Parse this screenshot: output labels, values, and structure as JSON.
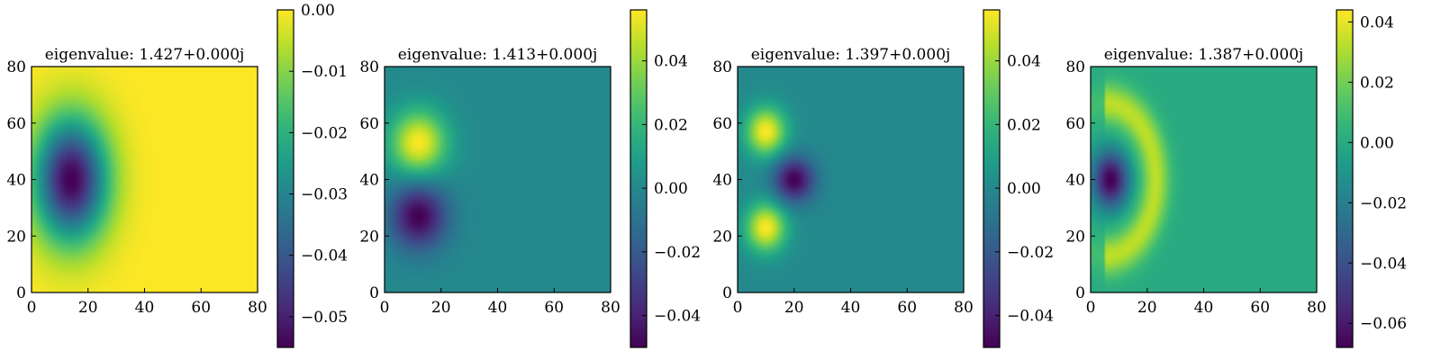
{
  "chart_data": [
    {
      "type": "heatmap",
      "title": "eigenvalue: 1.427+0.000j",
      "xlim": [
        0,
        80
      ],
      "ylim": [
        0,
        80
      ],
      "xticks": [
        "0",
        "20",
        "40",
        "60",
        "80"
      ],
      "yticks": [
        "0",
        "20",
        "40",
        "60",
        "80"
      ],
      "colorbar": {
        "range": [
          -0.055,
          0.0
        ],
        "ticks": [
          "0.00",
          "−0.01",
          "−0.02",
          "−0.03",
          "−0.04",
          "−0.05"
        ],
        "tick_values": [
          0.0,
          -0.01,
          -0.02,
          -0.03,
          -0.04,
          -0.05
        ]
      },
      "features": [
        {
          "x": 14,
          "y": 40,
          "sx": 9,
          "sy": 15,
          "amp": -1.0
        }
      ],
      "colormap": "viridis"
    },
    {
      "type": "heatmap",
      "title": "eigenvalue: 1.413+0.000j",
      "xlim": [
        0,
        80
      ],
      "ylim": [
        0,
        80
      ],
      "xticks": [
        "0",
        "20",
        "40",
        "60",
        "80"
      ],
      "yticks": [
        "0",
        "20",
        "40",
        "60",
        "80"
      ],
      "colorbar": {
        "range": [
          -0.05,
          0.056
        ],
        "ticks": [
          "0.04",
          "0.02",
          "0.00",
          "−0.02",
          "−0.04"
        ],
        "tick_values": [
          0.04,
          0.02,
          0.0,
          -0.02,
          -0.04
        ]
      },
      "features": [
        {
          "x": 12,
          "y": 53,
          "sx": 7,
          "sy": 8,
          "amp": 1.0
        },
        {
          "x": 12,
          "y": 27,
          "sx": 7,
          "sy": 8,
          "amp": -1.0
        }
      ],
      "colormap": "viridis"
    },
    {
      "type": "heatmap",
      "title": "eigenvalue: 1.397+0.000j",
      "xlim": [
        0,
        80
      ],
      "ylim": [
        0,
        80
      ],
      "xticks": [
        "0",
        "20",
        "40",
        "60",
        "80"
      ],
      "yticks": [
        "0",
        "20",
        "40",
        "60",
        "80"
      ],
      "colorbar": {
        "range": [
          -0.05,
          0.056
        ],
        "ticks": [
          "0.04",
          "0.02",
          "0.00",
          "−0.02",
          "−0.04"
        ],
        "tick_values": [
          0.04,
          0.02,
          0.0,
          -0.02,
          -0.04
        ]
      },
      "features": [
        {
          "x": 10,
          "y": 57,
          "sx": 5,
          "sy": 6,
          "amp": 1.0
        },
        {
          "x": 20,
          "y": 40,
          "sx": 5,
          "sy": 5.5,
          "amp": -1.0
        },
        {
          "x": 10,
          "y": 23,
          "sx": 5,
          "sy": 6,
          "amp": 1.0
        }
      ],
      "colormap": "viridis"
    },
    {
      "type": "heatmap",
      "title": "eigenvalue: 1.387+0.000j",
      "xlim": [
        0,
        80
      ],
      "ylim": [
        0,
        80
      ],
      "xticks": [
        "0",
        "20",
        "40",
        "60",
        "80"
      ],
      "yticks": [
        "0",
        "20",
        "40",
        "60",
        "80"
      ],
      "colorbar": {
        "range": [
          -0.068,
          0.044
        ],
        "ticks": [
          "0.04",
          "0.02",
          "0.00",
          "−0.02",
          "−0.04",
          "−0.06"
        ],
        "tick_values": [
          0.04,
          0.02,
          0.0,
          -0.02,
          -0.04,
          -0.06
        ]
      },
      "features": [
        {
          "x": 7,
          "y": 40,
          "sx": 4.5,
          "sy": 7,
          "amp": -1.0
        },
        {
          "type": "ring",
          "x": 5,
          "y": 40,
          "r": 18,
          "w": 3.5,
          "sy_scale": 1.5,
          "amp": 0.75
        }
      ],
      "colormap": "viridis"
    }
  ]
}
